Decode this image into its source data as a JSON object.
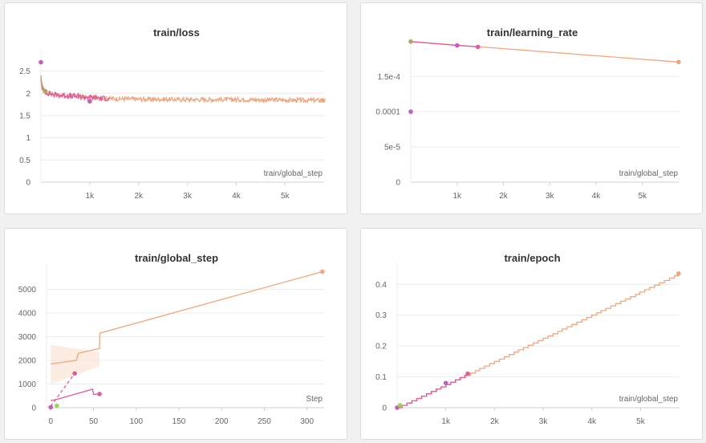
{
  "colors": {
    "orange": "#f0a77e",
    "orange_band": "#fbe4d6",
    "pink": "#e25c9c",
    "magenta": "#c85ac2",
    "olive": "#b3a55a",
    "green": "#9cd64f"
  },
  "chart_data": [
    {
      "type": "line",
      "title": "train/loss",
      "xlabel": "train/global_step",
      "ylabel": "",
      "xlim": [
        0,
        5800
      ],
      "ylim": [
        0,
        2.8
      ],
      "xticks": [
        1000,
        2000,
        3000,
        4000,
        5000
      ],
      "xtick_labels": [
        "1k",
        "2k",
        "3k",
        "4k",
        "5k"
      ],
      "yticks": [
        0,
        0.5,
        1,
        1.5,
        2,
        2.5
      ],
      "ytick_labels": [
        "0",
        "0.5",
        "1",
        "1.5",
        "2",
        "2.5"
      ],
      "grid": true,
      "series": [
        {
          "color_key": "orange",
          "noise": 0.025,
          "x": [
            0,
            30,
            100,
            300,
            600,
            1000,
            1500,
            2000,
            3000,
            4000,
            5000,
            5780
          ],
          "y": [
            2.35,
            2.1,
            2.02,
            1.97,
            1.93,
            1.9,
            1.88,
            1.87,
            1.86,
            1.86,
            1.85,
            1.84
          ],
          "end_marker": true
        },
        {
          "color_key": "pink",
          "noise": 0.03,
          "x": [
            0,
            30,
            100,
            300,
            600,
            900,
            1400
          ],
          "y": [
            2.3,
            2.1,
            2.02,
            1.97,
            1.94,
            1.92,
            1.88
          ],
          "end_marker": false
        },
        {
          "color_key": "magenta",
          "noise": 0.0,
          "x": [
            1000
          ],
          "y": [
            1.82
          ],
          "end_marker": true
        },
        {
          "color_key": "magenta",
          "noise": 0.0,
          "x": [
            0
          ],
          "y": [
            2.7
          ],
          "end_marker": true
        },
        {
          "color_key": "olive",
          "noise": 0.02,
          "x": [
            0,
            20,
            60,
            90
          ],
          "y": [
            2.4,
            2.2,
            2.08,
            2.05
          ],
          "end_marker": true
        }
      ]
    },
    {
      "type": "line",
      "title": "train/learning_rate",
      "xlabel": "train/global_step",
      "ylabel": "",
      "xlim": [
        0,
        5800
      ],
      "ylim": [
        0,
        0.000197
      ],
      "xticks": [
        1000,
        2000,
        3000,
        4000,
        5000
      ],
      "xtick_labels": [
        "1k",
        "2k",
        "3k",
        "4k",
        "5k"
      ],
      "yticks": [
        0,
        5e-05,
        0.0001,
        0.00015
      ],
      "ytick_labels": [
        "0",
        "5e-5",
        "0.0001",
        "1.5e-4"
      ],
      "grid": true,
      "series": [
        {
          "color_key": "orange",
          "noise": 0.0,
          "x": [
            0,
            5780
          ],
          "y": [
            0.0001995,
            0.0001705
          ],
          "end_marker": true
        },
        {
          "color_key": "pink",
          "noise": 0.0,
          "x": [
            0,
            1000,
            1450
          ],
          "y": [
            0.0001995,
            0.000194,
            0.000192
          ],
          "end_marker": true
        },
        {
          "color_key": "magenta",
          "noise": 0.0,
          "x": [
            1000
          ],
          "y": [
            0.000194
          ],
          "end_marker": true
        },
        {
          "color_key": "magenta",
          "noise": 0.0,
          "x": [
            0
          ],
          "y": [
            0.0001
          ],
          "end_marker": true
        },
        {
          "color_key": "olive",
          "noise": 0.0,
          "x": [
            0
          ],
          "y": [
            0.0001995
          ],
          "end_marker": true
        }
      ]
    },
    {
      "type": "line",
      "title": "train/global_step",
      "xlabel": "Step",
      "ylabel": "",
      "xlim": [
        -5,
        320
      ],
      "ylim": [
        0,
        5800
      ],
      "xticks": [
        0,
        50,
        100,
        150,
        200,
        250,
        300
      ],
      "xtick_labels": [
        "0",
        "50",
        "100",
        "150",
        "200",
        "250",
        "300"
      ],
      "yticks": [
        0,
        1000,
        2000,
        3000,
        4000,
        5000
      ],
      "ytick_labels": [
        "0",
        "1000",
        "2000",
        "3000",
        "4000",
        "5000"
      ],
      "grid": true,
      "bands": [
        {
          "color_key": "orange_band",
          "x": [
            0,
            57
          ],
          "upper": [
            2650,
            2350
          ],
          "lower": [
            1000,
            1750
          ]
        }
      ],
      "series": [
        {
          "color_key": "orange",
          "noise": 0.0,
          "x": [
            0,
            30,
            32,
            57,
            57.5,
            318
          ],
          "y": [
            1850,
            2000,
            2300,
            2500,
            3150,
            5750
          ],
          "end_marker": true
        },
        {
          "color_key": "pink",
          "noise": 0.0,
          "x": [
            0,
            10,
            49,
            50,
            57
          ],
          "y": [
            300,
            380,
            780,
            560,
            580
          ],
          "end_marker": true
        },
        {
          "color_key": "pink",
          "noise": 0.0,
          "dashed": true,
          "x": [
            0,
            28
          ],
          "y": [
            60,
            1450
          ],
          "end_marker": true
        },
        {
          "color_key": "magenta",
          "noise": 0.0,
          "x": [
            0
          ],
          "y": [
            20
          ],
          "end_marker": true
        },
        {
          "color_key": "green",
          "noise": 0.0,
          "x": [
            7
          ],
          "y": [
            80
          ],
          "end_marker": true
        }
      ]
    },
    {
      "type": "line",
      "title": "train/epoch",
      "xlabel": "train/global_step",
      "ylabel": "",
      "xlim": [
        0,
        5800
      ],
      "ylim": [
        0,
        0.445
      ],
      "xticks": [
        1000,
        2000,
        3000,
        4000,
        5000
      ],
      "xtick_labels": [
        "1k",
        "2k",
        "3k",
        "4k",
        "5k"
      ],
      "yticks": [
        0,
        0.1,
        0.2,
        0.3,
        0.4
      ],
      "ytick_labels": [
        "0",
        "0.1",
        "0.2",
        "0.3",
        "0.4"
      ],
      "grid": true,
      "series": [
        {
          "color_key": "orange",
          "noise": 0.0,
          "step": 0.0075,
          "x": [
            0,
            5780
          ],
          "y": [
            0,
            0.435
          ],
          "end_marker": true
        },
        {
          "color_key": "pink",
          "noise": 0.0,
          "step": 0.0075,
          "x": [
            0,
            1000,
            1450
          ],
          "y": [
            0,
            0.075,
            0.11
          ],
          "end_marker": true
        },
        {
          "color_key": "magenta",
          "noise": 0.0,
          "x": [
            1000
          ],
          "y": [
            0.08
          ],
          "end_marker": true
        },
        {
          "color_key": "magenta",
          "noise": 0.0,
          "x": [
            0
          ],
          "y": [
            0
          ],
          "end_marker": true
        },
        {
          "color_key": "green",
          "noise": 0.0,
          "x": [
            60
          ],
          "y": [
            0.008
          ],
          "end_marker": true
        }
      ]
    }
  ]
}
